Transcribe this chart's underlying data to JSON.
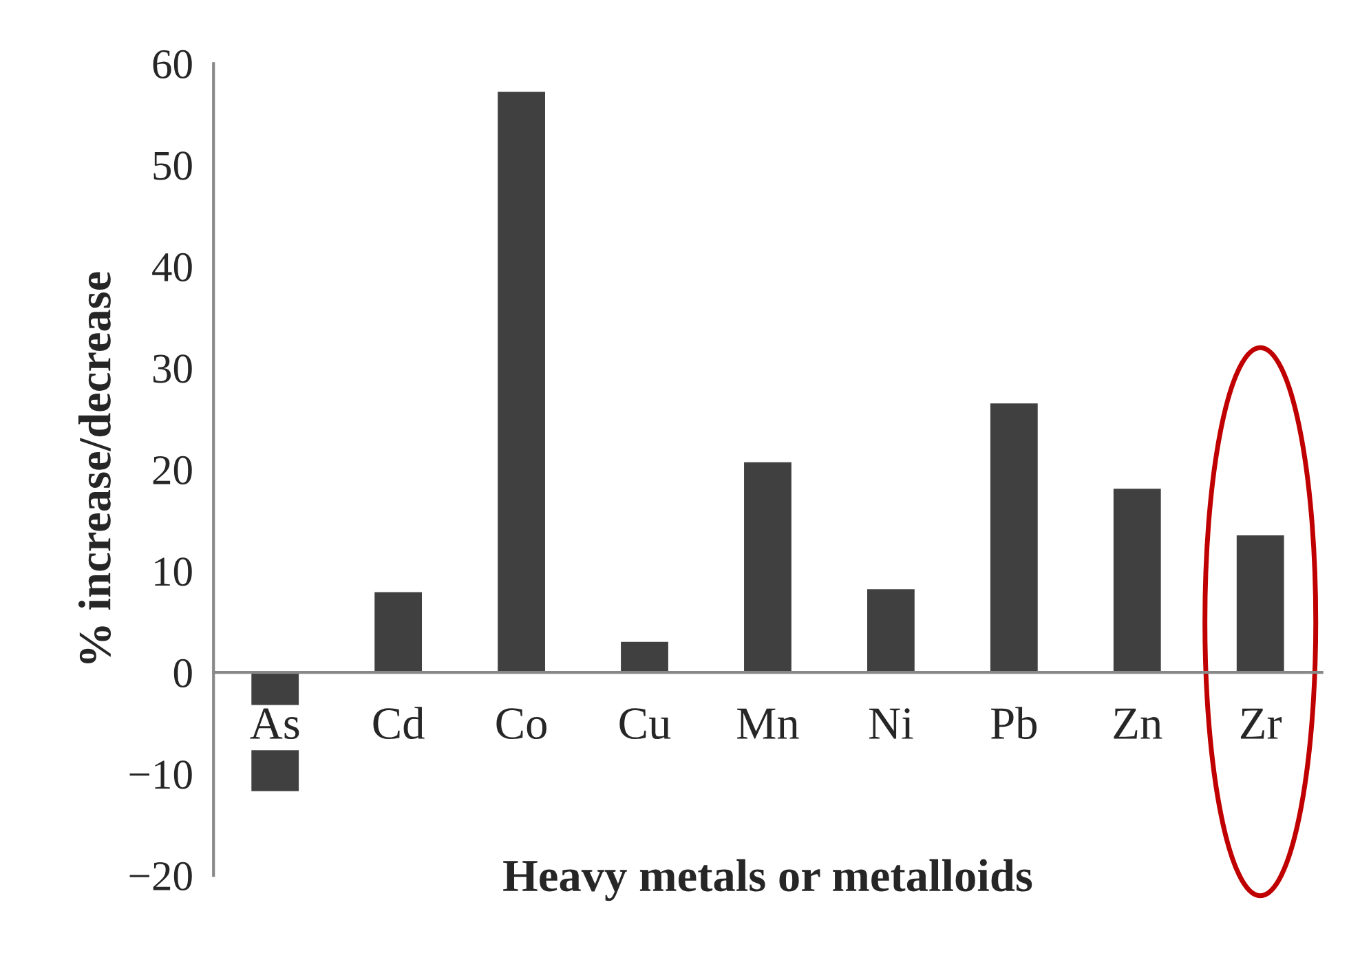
{
  "chart_data": {
    "type": "bar",
    "xlabel": "Heavy metals or metalloids",
    "ylabel": "% increase/decrease",
    "categories": [
      "As",
      "Cd",
      "Co",
      "Cu",
      "Mn",
      "Ni",
      "Pb",
      "Zn",
      "Zr"
    ],
    "values": [
      -11.8,
      8.0,
      57.3,
      3.1,
      20.8,
      8.3,
      26.6,
      18.2,
      13.6
    ],
    "color": "#404040",
    "ylim": [
      -20,
      60
    ],
    "yticks": [
      {
        "value": -20,
        "label": "−20"
      },
      {
        "value": -10,
        "label": "−10"
      },
      0,
      10,
      20,
      30,
      40,
      50,
      60
    ],
    "grid": false,
    "legend": false
  }
}
